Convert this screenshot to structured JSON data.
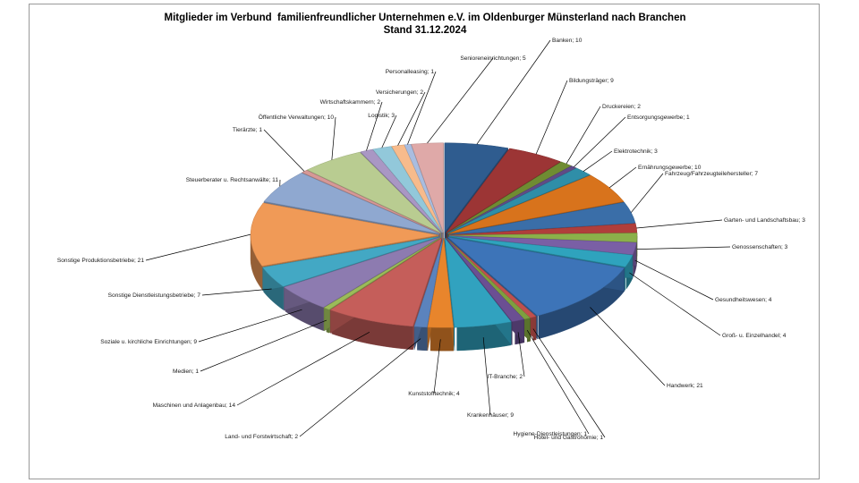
{
  "chart_data": {
    "type": "pie",
    "title": "Mitglieder im Verbund  familienfreundlicher Unternehmen e.V. im Oldenburger Münsterland nach Branchen",
    "subtitle": "Stand 31.12.2024",
    "slices": [
      {
        "label": "Banken",
        "value": 10,
        "color": "#2f5c8f"
      },
      {
        "label": "Bildungsträger",
        "value": 9,
        "color": "#9c3535"
      },
      {
        "label": "Druckereien",
        "value": 2,
        "color": "#6f8c32"
      },
      {
        "label": "Entsorgungsgewerbe",
        "value": 1,
        "color": "#5f4b86"
      },
      {
        "label": "Elektrotechnik",
        "value": 3,
        "color": "#2f8ea8"
      },
      {
        "label": "Ernährungsgewerbe",
        "value": 10,
        "color": "#d8731c"
      },
      {
        "label": "Fahrzeug/Fahrzeugteilehersteller",
        "value": 7,
        "color": "#3a6ea8"
      },
      {
        "label": "Garten- und Landschaftsbau",
        "value": 3,
        "color": "#b03e3b"
      },
      {
        "label": "Genossenschaften",
        "value": 3,
        "color": "#8bb04a"
      },
      {
        "label": "Gesundheitswesen",
        "value": 4,
        "color": "#7a5fa5"
      },
      {
        "label": "Groß- u. Einzelhandel",
        "value": 4,
        "color": "#2fa3bd"
      },
      {
        "label": "Handwerk",
        "value": 21,
        "color": "#3d74b8"
      },
      {
        "label": "Hotel- und Gastronomie",
        "value": 1,
        "color": "#c0504d"
      },
      {
        "label": "Hygiene-Dienstleistungen",
        "value": 1,
        "color": "#7d9f3f"
      },
      {
        "label": "IT-Branche",
        "value": 2,
        "color": "#6b4f93"
      },
      {
        "label": "Krankenhäuser",
        "value": 9,
        "color": "#31a2bf"
      },
      {
        "label": "Kunststofftechnik",
        "value": 4,
        "color": "#e8852c"
      },
      {
        "label": "Land- und Forstwirtschaft",
        "value": 2,
        "color": "#5b83bd"
      },
      {
        "label": "Maschinen und Anlagenbau",
        "value": 14,
        "color": "#c55e5a"
      },
      {
        "label": "Medien",
        "value": 1,
        "color": "#9bbb59"
      },
      {
        "label": "Soziale u. kirchliche Einrichtungen",
        "value": 9,
        "color": "#8d7bb0"
      },
      {
        "label": "Sonstige Dienstleistungsbetriebe",
        "value": 7,
        "color": "#43a8c4"
      },
      {
        "label": "Sonstige Produktionsbetriebe",
        "value": 21,
        "color": "#f09a57"
      },
      {
        "label": "Steuerberater u. Rechtsanwälte",
        "value": 11,
        "color": "#8fa8d0"
      },
      {
        "label": "Tierärzte",
        "value": 1,
        "color": "#d69896"
      },
      {
        "label": "Öffentliche Verwaltungen",
        "value": 10,
        "color": "#b9cc91"
      },
      {
        "label": "Wirtschaftskammern",
        "value": 2,
        "color": "#a997c4"
      },
      {
        "label": "Logistik",
        "value": 3,
        "color": "#92c8da"
      },
      {
        "label": "Versicherungen",
        "value": 2,
        "color": "#f7bb8c"
      },
      {
        "label": "Personalleasing",
        "value": 1,
        "color": "#a9bde0"
      },
      {
        "label": "Senioreneinrichtungen",
        "value": 5,
        "color": "#dfa9a8"
      }
    ],
    "legend": "none"
  }
}
